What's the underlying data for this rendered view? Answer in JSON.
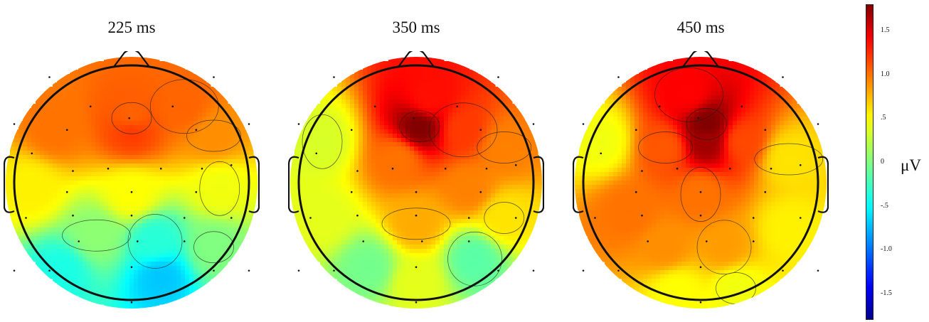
{
  "chart_data": {
    "type": "heatmap",
    "subtype": "eeg-scalp-topography",
    "maps": [
      {
        "title": "225 ms",
        "blobs": [
          {
            "x": 0.0,
            "y": -0.55,
            "v": 1.05
          },
          {
            "x": 0.0,
            "y": -0.45,
            "v": 1.2
          },
          {
            "x": 0.45,
            "y": -0.65,
            "v": 1.05
          },
          {
            "x": -0.65,
            "y": -0.45,
            "v": 1.0
          },
          {
            "x": 0.7,
            "y": -0.4,
            "v": 0.9
          },
          {
            "x": -0.85,
            "y": 0.05,
            "v": 0.55
          },
          {
            "x": 0.75,
            "y": 0.05,
            "v": 0.45
          },
          {
            "x": 0.0,
            "y": 0.1,
            "v": 0.5
          },
          {
            "x": -0.3,
            "y": 0.45,
            "v": 0.05
          },
          {
            "x": 0.25,
            "y": 0.8,
            "v": -0.7
          },
          {
            "x": 0.2,
            "y": 0.5,
            "v": -0.35
          },
          {
            "x": -0.6,
            "y": 0.75,
            "v": -0.4
          },
          {
            "x": 0.7,
            "y": 0.55,
            "v": 0.0
          }
        ]
      },
      {
        "title": "350 ms",
        "blobs": [
          {
            "x": 0.03,
            "y": -0.48,
            "v": 1.8
          },
          {
            "x": 0.1,
            "y": -0.7,
            "v": 1.35
          },
          {
            "x": 0.4,
            "y": -0.45,
            "v": 1.2
          },
          {
            "x": -0.15,
            "y": -0.2,
            "v": 1.0
          },
          {
            "x": 0.75,
            "y": -0.3,
            "v": 0.95
          },
          {
            "x": 0.45,
            "y": 0.05,
            "v": 0.95
          },
          {
            "x": -0.8,
            "y": -0.35,
            "v": 0.35
          },
          {
            "x": -0.8,
            "y": 0.3,
            "v": 0.4
          },
          {
            "x": 0.0,
            "y": 0.35,
            "v": 0.8
          },
          {
            "x": -0.4,
            "y": 0.72,
            "v": -0.05
          },
          {
            "x": 0.5,
            "y": 0.65,
            "v": -0.15
          },
          {
            "x": 0.0,
            "y": 0.85,
            "v": 0.4
          },
          {
            "x": 0.75,
            "y": 0.3,
            "v": 0.6
          }
        ]
      },
      {
        "title": "450 ms",
        "blobs": [
          {
            "x": 0.05,
            "y": -0.5,
            "v": 1.8
          },
          {
            "x": 0.05,
            "y": -0.35,
            "v": 1.7
          },
          {
            "x": -0.1,
            "y": -0.75,
            "v": 1.4
          },
          {
            "x": 0.35,
            "y": -0.35,
            "v": 1.15
          },
          {
            "x": -0.3,
            "y": -0.3,
            "v": 1.1
          },
          {
            "x": -0.6,
            "y": 0.25,
            "v": 1.0
          },
          {
            "x": 0.0,
            "y": 0.1,
            "v": 1.0
          },
          {
            "x": -0.85,
            "y": -0.35,
            "v": 0.45
          },
          {
            "x": 0.75,
            "y": -0.2,
            "v": 0.6
          },
          {
            "x": 0.75,
            "y": 0.4,
            "v": 0.55
          },
          {
            "x": 0.2,
            "y": 0.55,
            "v": 0.85
          },
          {
            "x": -0.3,
            "y": 0.55,
            "v": 0.9
          },
          {
            "x": 0.3,
            "y": 0.9,
            "v": 0.45
          },
          {
            "x": -0.2,
            "y": 0.92,
            "v": 0.5
          }
        ]
      }
    ],
    "color_scale": {
      "min": -1.8,
      "max": 1.8,
      "ticks": [
        "1.5",
        "1.0",
        ".5",
        "0",
        "-.5",
        "-1.0",
        "-1.5"
      ],
      "tick_values": [
        1.5,
        1.0,
        0.5,
        0.0,
        -0.5,
        -1.0,
        -1.5
      ],
      "unit": "μV",
      "colormap": "jet"
    }
  }
}
